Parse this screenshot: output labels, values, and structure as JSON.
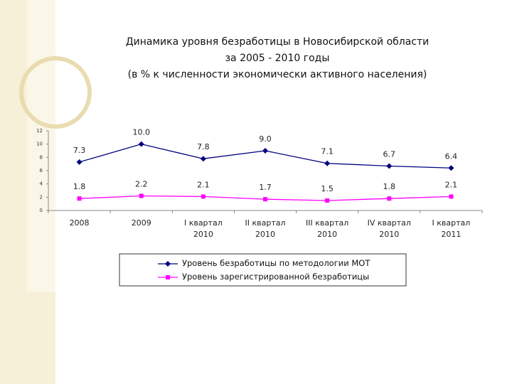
{
  "chart_data": {
    "type": "line",
    "title": [
      "Динамика уровня безработицы в Новосибирской области",
      "за 2005 - 2010 годы",
      "(в % к численности экономически активного населения)"
    ],
    "categories": [
      "2008",
      "2009",
      "I квартал 2010",
      "II квартал 2010",
      "III квартал 2010",
      "IV квартал 2010",
      "I квартал 2011"
    ],
    "series": [
      {
        "name": "Уровень безработицы по методологии МОТ",
        "color": "#000080",
        "marker": "diamond",
        "values": [
          7.3,
          10.0,
          7.8,
          9.0,
          7.1,
          6.7,
          6.4
        ],
        "value_labels": [
          "7.3",
          "10.0",
          "7.8",
          "9.0",
          "7.1",
          "6.7",
          "6.4"
        ]
      },
      {
        "name": "Уровень зарегистрированной безработицы",
        "color": "#ff00ff",
        "marker": "square",
        "values": [
          1.8,
          2.2,
          2.1,
          1.7,
          1.5,
          1.8,
          2.1
        ]
      }
    ],
    "ylim": [
      0,
      12
    ],
    "yticks": [
      0,
      2,
      4,
      6,
      8,
      10,
      12
    ]
  }
}
